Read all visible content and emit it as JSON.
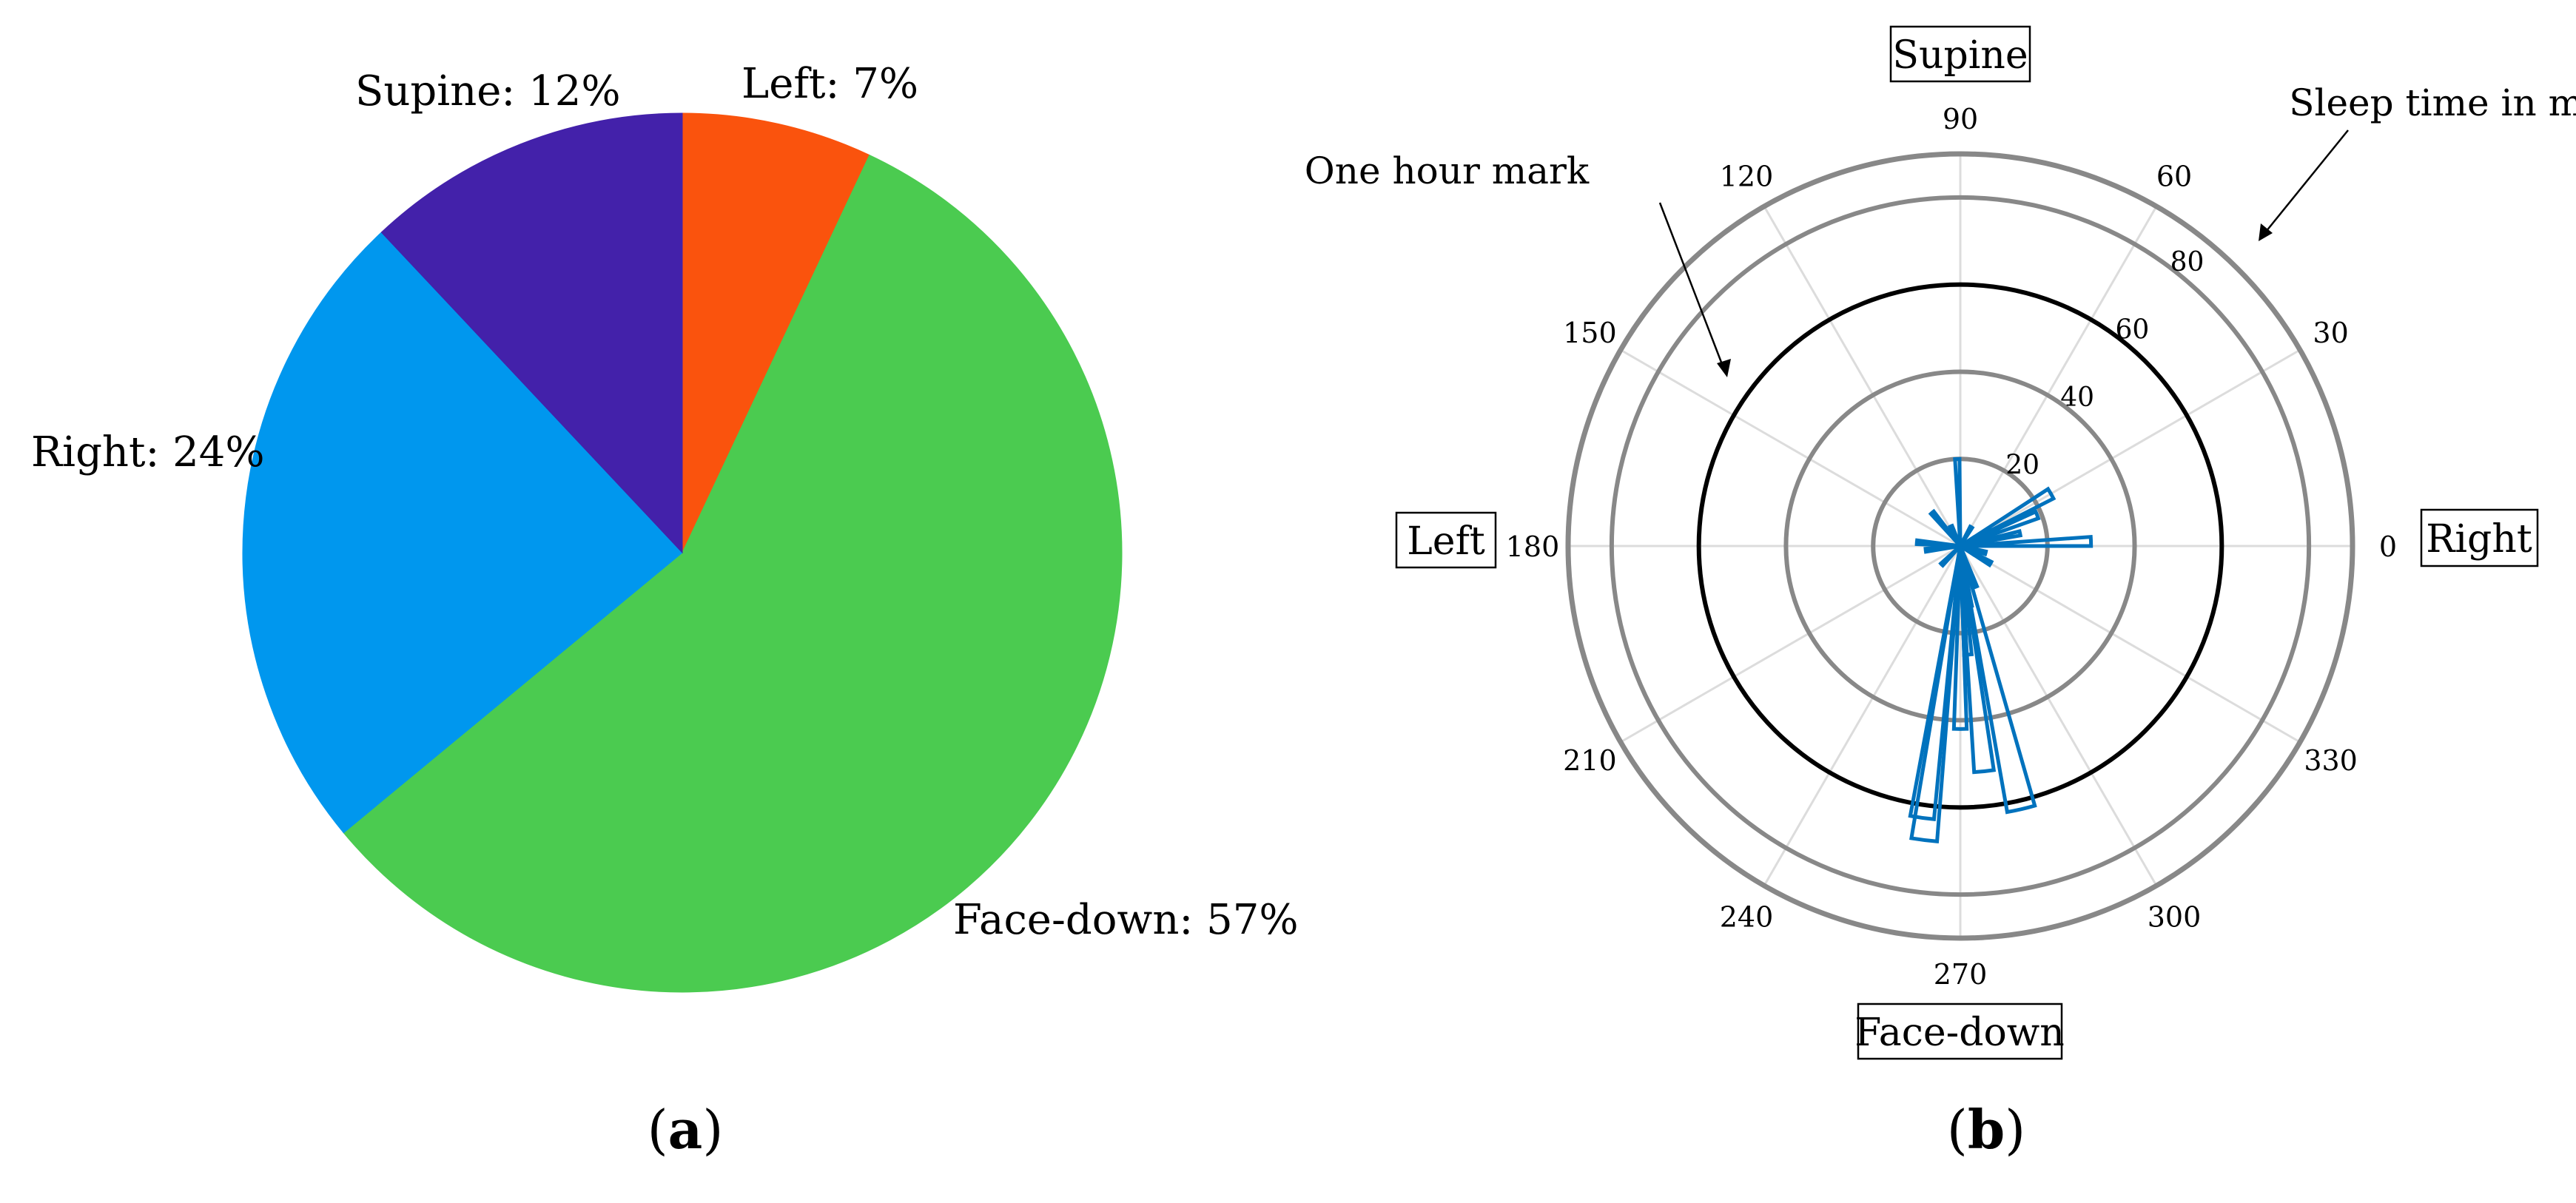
{
  "panels": {
    "a": {
      "caption_letter": "a"
    },
    "b": {
      "caption_letter": "b"
    }
  },
  "chart_data": [
    {
      "panel": "a",
      "type": "pie",
      "title": "",
      "start_angle_deg": 90,
      "direction": "clockwise",
      "slices": [
        {
          "name": "Left",
          "label": "Left: 7%",
          "value": 7,
          "color": "#FA530D"
        },
        {
          "name": "Face-down",
          "label": "Face-down: 57%",
          "value": 57,
          "color": "#4BCB50"
        },
        {
          "name": "Right",
          "label": "Right: 24%",
          "value": 24,
          "color": "#0097EE"
        },
        {
          "name": "Supine",
          "label": "Supine: 12%",
          "value": 12,
          "color": "#4321AA"
        }
      ]
    },
    {
      "panel": "b",
      "type": "polar-histogram",
      "title": "",
      "series_color": "#0072BD",
      "r_unit": "Sleep time in minutes",
      "rlim": [
        0,
        90
      ],
      "r_ticks": [
        20,
        40,
        60,
        80
      ],
      "r_gridlines": [
        20,
        40,
        80
      ],
      "highlight_ring": {
        "value": 60,
        "label": "One hour mark"
      },
      "theta_ticks": [
        "0",
        "30",
        "60",
        "90",
        "120",
        "150",
        "180",
        "210",
        "240",
        "270",
        "300",
        "330"
      ],
      "direction_labels": {
        "0": "Right",
        "90": "Supine",
        "180": "Left",
        "270": "Face-down"
      },
      "annotations": [
        {
          "text": "Sleep time in minutes",
          "points_to": "r-axis tick labels"
        },
        {
          "text": "One hour mark",
          "points_to": "60-minute ring"
        }
      ],
      "bars": [
        {
          "theta": 263,
          "r": 68,
          "width": 5
        },
        {
          "theta": 262,
          "r": 63,
          "width": 5
        },
        {
          "theta": 283,
          "r": 62,
          "width": 6
        },
        {
          "theta": 276,
          "r": 52,
          "width": 5
        },
        {
          "theta": 270,
          "r": 42,
          "width": 4
        },
        {
          "theta": 274,
          "r": 25,
          "width": 4
        },
        {
          "theta": 279,
          "r": 14,
          "width": 4
        },
        {
          "theta": 290,
          "r": 10,
          "width": 5
        },
        {
          "theta": 30,
          "r": 24,
          "width": 6
        },
        {
          "theta": 22,
          "r": 19,
          "width": 5
        },
        {
          "theta": 2,
          "r": 30,
          "width": 4
        },
        {
          "theta": 12,
          "r": 14,
          "width": 4
        },
        {
          "theta": 92,
          "r": 20,
          "width": 3
        },
        {
          "theta": 130,
          "r": 10,
          "width": 5
        },
        {
          "theta": 175,
          "r": 10,
          "width": 5
        },
        {
          "theta": 187,
          "r": 8,
          "width": 5
        },
        {
          "theta": 330,
          "r": 8,
          "width": 6
        },
        {
          "theta": 345,
          "r": 6,
          "width": 6
        },
        {
          "theta": 225,
          "r": 6,
          "width": 6
        },
        {
          "theta": 60,
          "r": 5,
          "width": 6
        },
        {
          "theta": 115,
          "r": 5,
          "width": 6
        }
      ]
    }
  ]
}
